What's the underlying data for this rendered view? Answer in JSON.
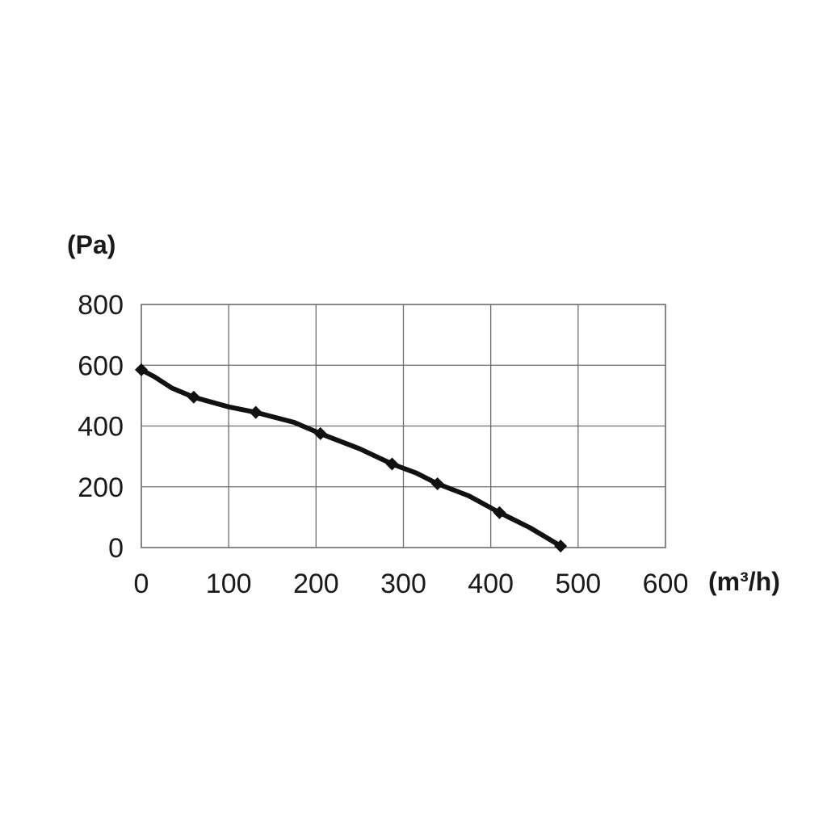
{
  "chart_data": {
    "type": "line",
    "ylabel": "(Pa)",
    "xlabel": "(m³/h)",
    "xlim": [
      0,
      600
    ],
    "ylim": [
      0,
      800
    ],
    "x_ticks": [
      "0",
      "100",
      "200",
      "300",
      "400",
      "500",
      "600"
    ],
    "y_ticks": [
      "800",
      "600",
      "400",
      "200",
      "0"
    ],
    "grid": true,
    "series": [
      {
        "markers": [
          [
            0,
            585
          ],
          [
            60,
            495
          ],
          [
            131,
            445
          ],
          [
            205,
            375
          ],
          [
            287,
            275
          ],
          [
            339,
            210
          ],
          [
            410,
            115
          ],
          [
            480,
            5
          ]
        ],
        "curve": [
          [
            0,
            585
          ],
          [
            15,
            562
          ],
          [
            35,
            525
          ],
          [
            60,
            495
          ],
          [
            100,
            463
          ],
          [
            131,
            445
          ],
          [
            175,
            412
          ],
          [
            205,
            375
          ],
          [
            250,
            325
          ],
          [
            287,
            275
          ],
          [
            315,
            245
          ],
          [
            339,
            210
          ],
          [
            375,
            170
          ],
          [
            410,
            115
          ],
          [
            445,
            65
          ],
          [
            480,
            5
          ]
        ]
      }
    ]
  }
}
